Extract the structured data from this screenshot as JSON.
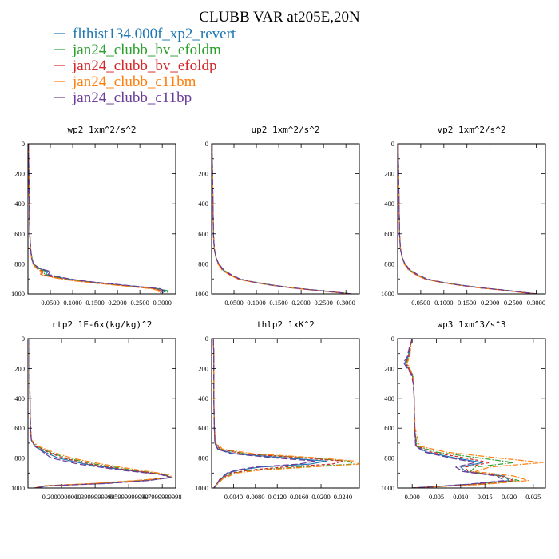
{
  "figure": {
    "title": "CLUBB VAR at205E,20N"
  },
  "colors": {
    "series": [
      "#1f77b4",
      "#2ca02c",
      "#d62728",
      "#ff7f0e",
      "#6a3d9a"
    ]
  },
  "chart_data": {
    "type": "line",
    "title": "CLUBB VAR at205E,20N",
    "legend": [
      {
        "name": "flthist134.000f_xp2_revert",
        "color": "#1f77b4",
        "dash": "solid"
      },
      {
        "name": "jan24_clubb_bv_efoldm",
        "color": "#2ca02c",
        "dash": "dashdot"
      },
      {
        "name": "jan24_clubb_bv_efoldp",
        "color": "#d62728",
        "dash": "dashed"
      },
      {
        "name": "jan24_clubb_c11bm",
        "color": "#ff7f0e",
        "dash": "dashdot"
      },
      {
        "name": "jan24_clubb_c11bp",
        "color": "#6a3d9a",
        "dash": "longdash"
      }
    ],
    "panels": [
      {
        "title": "wp2  1xm^2/s^2",
        "xlim": [
          0,
          0.33
        ],
        "ylim": [
          1000,
          0
        ],
        "xticks": [
          0.05,
          0.1,
          0.15,
          0.2,
          0.25,
          0.3
        ],
        "xticklabels": [
          "0.0500",
          "0.1000",
          "0.1500",
          "0.2000",
          "0.2500",
          "0.3000"
        ],
        "yticks": [
          0,
          200,
          400,
          600,
          800,
          1000
        ],
        "yticklabels": [
          "0",
          "200",
          "400",
          "600",
          "800",
          "1000"
        ],
        "y": [
          0,
          200,
          400,
          600,
          700,
          760,
          800,
          830,
          850,
          870,
          890,
          910,
          930,
          950,
          965,
          980,
          992
        ],
        "series": [
          [
            0.001,
            0.002,
            0.003,
            0.004,
            0.006,
            0.008,
            0.012,
            0.025,
            0.045,
            0.04,
            0.07,
            0.11,
            0.17,
            0.24,
            0.29,
            0.31,
            0.3
          ],
          [
            0.001,
            0.002,
            0.003,
            0.004,
            0.006,
            0.009,
            0.013,
            0.022,
            0.04,
            0.035,
            0.065,
            0.105,
            0.165,
            0.235,
            0.285,
            0.315,
            0.31
          ],
          [
            0.001,
            0.002,
            0.003,
            0.004,
            0.006,
            0.008,
            0.012,
            0.02,
            0.035,
            0.03,
            0.06,
            0.1,
            0.16,
            0.23,
            0.28,
            0.3,
            0.295
          ],
          [
            0.001,
            0.002,
            0.003,
            0.004,
            0.006,
            0.008,
            0.011,
            0.018,
            0.03,
            0.028,
            0.055,
            0.095,
            0.155,
            0.225,
            0.275,
            0.295,
            0.29
          ],
          [
            0.001,
            0.002,
            0.003,
            0.004,
            0.006,
            0.008,
            0.012,
            0.026,
            0.05,
            0.045,
            0.075,
            0.115,
            0.175,
            0.245,
            0.295,
            0.305,
            0.3
          ]
        ]
      },
      {
        "title": "up2  1xm^2/s^2",
        "xlim": [
          0,
          0.33
        ],
        "ylim": [
          1000,
          0
        ],
        "xticks": [
          0.05,
          0.1,
          0.15,
          0.2,
          0.25,
          0.3
        ],
        "xticklabels": [
          "0.0500",
          "0.1000",
          "0.1500",
          "0.2000",
          "0.2500",
          "0.3000"
        ],
        "yticks": [
          0,
          200,
          400,
          600,
          800,
          1000
        ],
        "yticklabels": [
          "0",
          "200",
          "400",
          "600",
          "800",
          "1000"
        ],
        "y": [
          0,
          200,
          400,
          600,
          700,
          760,
          800,
          840,
          870,
          900,
          920,
          940,
          960,
          975,
          990,
          1000
        ],
        "series": [
          [
            0.001,
            0.002,
            0.003,
            0.004,
            0.006,
            0.01,
            0.015,
            0.025,
            0.04,
            0.06,
            0.09,
            0.13,
            0.18,
            0.23,
            0.28,
            0.31
          ],
          [
            0.001,
            0.002,
            0.003,
            0.004,
            0.006,
            0.01,
            0.016,
            0.026,
            0.042,
            0.062,
            0.092,
            0.132,
            0.182,
            0.232,
            0.282,
            0.312
          ],
          [
            0.001,
            0.002,
            0.003,
            0.004,
            0.006,
            0.01,
            0.015,
            0.024,
            0.039,
            0.059,
            0.089,
            0.129,
            0.179,
            0.229,
            0.279,
            0.309
          ],
          [
            0.001,
            0.002,
            0.003,
            0.004,
            0.006,
            0.01,
            0.014,
            0.023,
            0.038,
            0.058,
            0.088,
            0.128,
            0.178,
            0.228,
            0.278,
            0.308
          ],
          [
            0.001,
            0.002,
            0.003,
            0.004,
            0.006,
            0.01,
            0.016,
            0.027,
            0.043,
            0.063,
            0.093,
            0.133,
            0.183,
            0.233,
            0.283,
            0.313
          ]
        ]
      },
      {
        "title": "vp2  1xm^2/s^2",
        "xlim": [
          0,
          0.32
        ],
        "ylim": [
          1000,
          0
        ],
        "xticks": [
          0.05,
          0.1,
          0.15,
          0.2,
          0.25,
          0.3
        ],
        "xticklabels": [
          "0.0500",
          "0.1000",
          "0.1500",
          "0.2000",
          "0.2500",
          "0.3000"
        ],
        "yticks": [
          0,
          200,
          400,
          600,
          800,
          1000
        ],
        "yticklabels": [
          "0",
          "200",
          "400",
          "600",
          "800",
          "1000"
        ],
        "y": [
          0,
          200,
          400,
          600,
          700,
          760,
          800,
          840,
          870,
          900,
          920,
          940,
          960,
          975,
          990,
          1000
        ],
        "series": [
          [
            0.001,
            0.002,
            0.003,
            0.004,
            0.006,
            0.01,
            0.015,
            0.025,
            0.04,
            0.06,
            0.09,
            0.13,
            0.18,
            0.23,
            0.27,
            0.3
          ],
          [
            0.001,
            0.002,
            0.003,
            0.004,
            0.006,
            0.01,
            0.016,
            0.026,
            0.042,
            0.062,
            0.092,
            0.132,
            0.182,
            0.232,
            0.272,
            0.302
          ],
          [
            0.001,
            0.002,
            0.003,
            0.004,
            0.006,
            0.01,
            0.015,
            0.024,
            0.039,
            0.059,
            0.089,
            0.129,
            0.179,
            0.229,
            0.269,
            0.299
          ],
          [
            0.001,
            0.002,
            0.003,
            0.004,
            0.006,
            0.01,
            0.014,
            0.023,
            0.038,
            0.058,
            0.088,
            0.128,
            0.178,
            0.228,
            0.268,
            0.298
          ],
          [
            0.001,
            0.002,
            0.003,
            0.004,
            0.006,
            0.01,
            0.016,
            0.027,
            0.043,
            0.063,
            0.093,
            0.133,
            0.183,
            0.233,
            0.273,
            0.303
          ]
        ]
      },
      {
        "title": "rtp2  1E-6x(kg/kg)^2",
        "xlim": [
          0,
          0.88
        ],
        "ylim": [
          1000,
          0
        ],
        "xticks": [
          0.2,
          0.4,
          0.6,
          0.8
        ],
        "xticklabels": [
          "0.2000000000",
          "0.3999999999",
          "0.5999999999",
          "0.7999999998"
        ],
        "yticks": [
          0,
          200,
          400,
          600,
          800,
          1000
        ],
        "yticklabels": [
          "0",
          "200",
          "400",
          "600",
          "800",
          "1000"
        ],
        "y": [
          0,
          200,
          400,
          600,
          680,
          720,
          760,
          800,
          840,
          880,
          910,
          930,
          950,
          970,
          985,
          1000
        ],
        "series": [
          [
            0.01,
            0.01,
            0.012,
            0.015,
            0.02,
            0.04,
            0.1,
            0.18,
            0.34,
            0.58,
            0.8,
            0.86,
            0.7,
            0.45,
            0.12,
            0.04
          ],
          [
            0.01,
            0.01,
            0.012,
            0.015,
            0.02,
            0.05,
            0.13,
            0.23,
            0.4,
            0.62,
            0.82,
            0.85,
            0.66,
            0.4,
            0.1,
            0.04
          ],
          [
            0.01,
            0.01,
            0.012,
            0.015,
            0.02,
            0.045,
            0.12,
            0.21,
            0.37,
            0.6,
            0.81,
            0.855,
            0.68,
            0.42,
            0.11,
            0.04
          ],
          [
            0.01,
            0.01,
            0.012,
            0.015,
            0.022,
            0.06,
            0.15,
            0.26,
            0.44,
            0.66,
            0.84,
            0.86,
            0.64,
            0.38,
            0.1,
            0.04
          ],
          [
            0.01,
            0.01,
            0.012,
            0.015,
            0.02,
            0.04,
            0.09,
            0.14,
            0.3,
            0.55,
            0.79,
            0.85,
            0.72,
            0.47,
            0.13,
            0.04
          ]
        ]
      },
      {
        "title": "thlp2  1xK^2",
        "xlim": [
          0,
          0.027
        ],
        "ylim": [
          1000,
          0
        ],
        "xticks": [
          0.004,
          0.008,
          0.012,
          0.016,
          0.02,
          0.024
        ],
        "xticklabels": [
          "0.0040",
          "0.0080",
          "0.0120",
          "0.0160",
          "0.0200",
          "0.0240"
        ],
        "yticks": [
          0,
          200,
          400,
          600,
          800,
          1000
        ],
        "yticklabels": [
          "0",
          "200",
          "400",
          "600",
          "800",
          "1000"
        ],
        "y": [
          0,
          100,
          200,
          400,
          600,
          700,
          740,
          770,
          800,
          820,
          840,
          860,
          880,
          900,
          940,
          970,
          990,
          1000
        ],
        "series": [
          [
            0.0003,
            0.0004,
            0.0004,
            0.0004,
            0.0005,
            0.0006,
            0.0012,
            0.004,
            0.014,
            0.021,
            0.018,
            0.009,
            0.005,
            0.003,
            0.0016,
            0.001,
            0.0006,
            0.0004
          ],
          [
            0.0003,
            0.0004,
            0.0004,
            0.0004,
            0.0005,
            0.0007,
            0.0016,
            0.006,
            0.018,
            0.025,
            0.026,
            0.016,
            0.008,
            0.004,
            0.0018,
            0.0011,
            0.0007,
            0.0004
          ],
          [
            0.0003,
            0.0004,
            0.0004,
            0.0004,
            0.0005,
            0.0007,
            0.0015,
            0.0055,
            0.017,
            0.024,
            0.022,
            0.013,
            0.007,
            0.0035,
            0.0017,
            0.001,
            0.0006,
            0.0004
          ],
          [
            0.0003,
            0.0004,
            0.0004,
            0.0004,
            0.0005,
            0.0008,
            0.002,
            0.0075,
            0.02,
            0.026,
            0.027,
            0.018,
            0.009,
            0.0045,
            0.002,
            0.0012,
            0.0007,
            0.0004
          ],
          [
            0.0003,
            0.0004,
            0.0004,
            0.0004,
            0.0005,
            0.0006,
            0.0011,
            0.0035,
            0.012,
            0.019,
            0.016,
            0.008,
            0.0045,
            0.0028,
            0.0015,
            0.001,
            0.0006,
            0.0004
          ]
        ]
      },
      {
        "title": "wp3  1xm^3/s^3",
        "xlim": [
          -0.003,
          0.0275
        ],
        "ylim": [
          1000,
          0
        ],
        "xticks": [
          0.0,
          0.005,
          0.01,
          0.015,
          0.02,
          0.025
        ],
        "xticklabels": [
          "0.000",
          "0.005",
          "0.010",
          "0.015",
          "0.020",
          "0.025"
        ],
        "yticks": [
          0,
          200,
          400,
          600,
          800,
          1000
        ],
        "yticklabels": [
          "0",
          "200",
          "400",
          "600",
          "800",
          "1000"
        ],
        "y": [
          0,
          60,
          120,
          160,
          200,
          240,
          300,
          400,
          600,
          720,
          760,
          800,
          830,
          860,
          890,
          920,
          950,
          975,
          1000
        ],
        "series": [
          [
            0.0,
            -0.0005,
            -0.0008,
            -0.0015,
            -0.0008,
            0.0,
            0.0003,
            0.0004,
            0.0005,
            0.0008,
            0.003,
            0.009,
            0.0145,
            0.01,
            0.011,
            0.019,
            0.02,
            0.012,
            0.0
          ],
          [
            0.0,
            -0.0004,
            -0.0006,
            -0.0012,
            -0.0006,
            0.0001,
            0.0003,
            0.0004,
            0.0005,
            0.001,
            0.005,
            0.014,
            0.021,
            0.013,
            0.012,
            0.018,
            0.022,
            0.014,
            0.0
          ],
          [
            0.0,
            -0.0005,
            -0.0007,
            -0.0014,
            -0.0007,
            0.0,
            0.0003,
            0.0004,
            0.0005,
            0.0009,
            0.004,
            0.011,
            0.016,
            0.011,
            0.0115,
            0.0185,
            0.021,
            0.013,
            0.0
          ],
          [
            0.0,
            -0.0003,
            -0.0005,
            -0.001,
            -0.0005,
            0.0001,
            0.0003,
            0.0004,
            0.0006,
            0.0015,
            0.007,
            0.018,
            0.027,
            0.016,
            0.013,
            0.021,
            0.024,
            0.015,
            0.0
          ],
          [
            0.0,
            -0.0006,
            -0.001,
            -0.0018,
            -0.001,
            -0.0002,
            0.0002,
            0.0004,
            0.0005,
            0.0007,
            0.0025,
            0.008,
            0.013,
            0.009,
            0.0105,
            0.0175,
            0.019,
            0.0115,
            0.0
          ]
        ]
      }
    ]
  }
}
